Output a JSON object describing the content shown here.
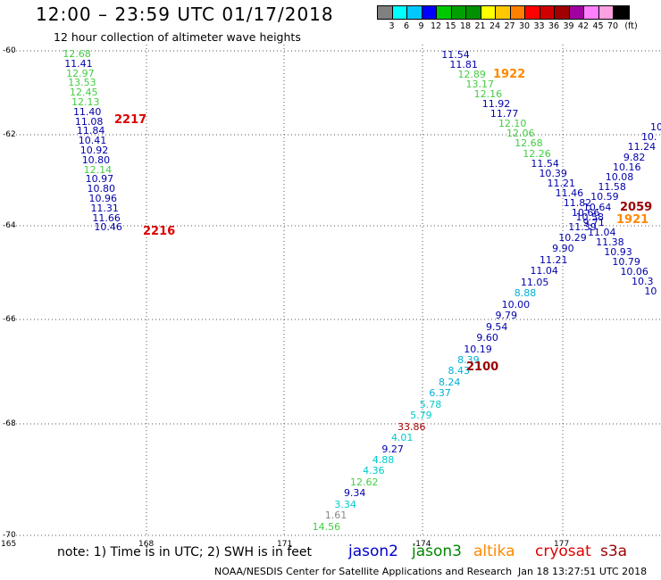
{
  "header": {
    "title": "12:00 – 23:59 UTC 01/17/2018",
    "subtitle": "12 hour collection of altimeter wave heights"
  },
  "legend": {
    "colors": [
      "#808080",
      "#00ffff",
      "#00c8ff",
      "#0000ff",
      "#00c800",
      "#00a000",
      "#009000",
      "#ffff00",
      "#ffc800",
      "#ff8000",
      "#ff0000",
      "#d00000",
      "#a00000",
      "#a000a0",
      "#ff80ff",
      "#ffa0e0",
      "#000000"
    ],
    "labels": [
      "3",
      "6",
      "9",
      "12",
      "15",
      "18",
      "21",
      "24",
      "27",
      "30",
      "33",
      "36",
      "39",
      "42",
      "45",
      "70",
      "(ft)"
    ]
  },
  "axes": {
    "lat_labels": [
      "-60",
      "-62",
      "-64",
      "-66",
      "-68",
      "-70"
    ],
    "lon_labels": [
      "165",
      "168",
      "171",
      "-174",
      "177"
    ]
  },
  "note": "note:  1) Time is in UTC;  2) SWH is in feet",
  "satellites": [
    {
      "name": "jason2",
      "color": "#0000cc"
    },
    {
      "name": "jason3",
      "color": "#008800"
    },
    {
      "name": "altika",
      "color": "#ff8800"
    },
    {
      "name": "cryosat",
      "color": "#dd0000"
    },
    {
      "name": "s3a",
      "color": "#990000"
    }
  ],
  "footer": {
    "credit": "NOAA/NESDIS Center for Satellite Applications and Research",
    "timestamp": "Jan 18 13:27:51 UTC 2018"
  },
  "tracks": [
    {
      "id": "track-2217",
      "points": [
        {
          "v": "12.68",
          "c": "#44cc44"
        },
        {
          "v": "11.41",
          "c": "#0000aa"
        },
        {
          "v": "12.97",
          "c": "#44cc44"
        },
        {
          "v": "13.53",
          "c": "#44cc44"
        },
        {
          "v": "12.45",
          "c": "#44cc44"
        },
        {
          "v": "12.13",
          "c": "#44cc44"
        },
        {
          "v": "11.40",
          "c": "#0000aa"
        },
        {
          "v": "11.08",
          "c": "#0000aa"
        },
        {
          "v": "11.84",
          "c": "#0000aa"
        },
        {
          "v": "10.41",
          "c": "#0000aa"
        },
        {
          "v": "10.92",
          "c": "#0000aa"
        },
        {
          "v": "10.80",
          "c": "#0000aa"
        },
        {
          "v": "12.14",
          "c": "#44cc44"
        },
        {
          "v": "10.97",
          "c": "#0000aa"
        },
        {
          "v": "10.80",
          "c": "#0000aa"
        },
        {
          "v": "10.96",
          "c": "#0000aa"
        },
        {
          "v": "11.31",
          "c": "#0000aa"
        },
        {
          "v": "11.66",
          "c": "#0000aa"
        },
        {
          "v": "10.46",
          "c": "#0000aa"
        }
      ]
    },
    {
      "id": "track-1922",
      "points": [
        {
          "v": "11.54",
          "c": "#0000aa"
        },
        {
          "v": "11.81",
          "c": "#0000aa"
        },
        {
          "v": "12.89",
          "c": "#44cc44"
        },
        {
          "v": "13.17",
          "c": "#44cc44"
        },
        {
          "v": "12.16",
          "c": "#44cc44"
        },
        {
          "v": "11.92",
          "c": "#0000aa"
        },
        {
          "v": "11.77",
          "c": "#0000aa"
        },
        {
          "v": "12.10",
          "c": "#44cc44"
        },
        {
          "v": "12.06",
          "c": "#44cc44"
        },
        {
          "v": "12.68",
          "c": "#44cc44"
        },
        {
          "v": "12.26",
          "c": "#44cc44"
        },
        {
          "v": "11.54",
          "c": "#0000aa"
        },
        {
          "v": "10.39",
          "c": "#0000aa"
        },
        {
          "v": "11.21",
          "c": "#0000aa"
        },
        {
          "v": "11.46",
          "c": "#0000aa"
        },
        {
          "v": "11.82",
          "c": "#0000aa"
        },
        {
          "v": "10.66",
          "c": "#0000aa"
        },
        {
          "v": "9.71",
          "c": "#0000aa"
        },
        {
          "v": "11.04",
          "c": "#0000aa"
        },
        {
          "v": "11.38",
          "c": "#0000aa"
        },
        {
          "v": "10.93",
          "c": "#0000aa"
        },
        {
          "v": "10.79",
          "c": "#0000aa"
        },
        {
          "v": "10.06",
          "c": "#0000aa"
        },
        {
          "v": "10.3",
          "c": "#0000aa"
        },
        {
          "v": "10",
          "c": "#0000aa"
        }
      ]
    },
    {
      "id": "track-2059",
      "points": [
        {
          "v": "10",
          "c": "#0000aa"
        },
        {
          "v": "10.",
          "c": "#0000aa"
        },
        {
          "v": "11.24",
          "c": "#0000aa"
        },
        {
          "v": "9.82",
          "c": "#0000aa"
        },
        {
          "v": "10.16",
          "c": "#0000aa"
        },
        {
          "v": "10.08",
          "c": "#0000aa"
        },
        {
          "v": "11.58",
          "c": "#0000aa"
        },
        {
          "v": "10.59",
          "c": "#0000aa"
        },
        {
          "v": "10.64",
          "c": "#0000aa"
        },
        {
          "v": "10.58",
          "c": "#0000aa"
        },
        {
          "v": "11.39",
          "c": "#0000aa"
        }
      ]
    },
    {
      "id": "track-2100",
      "points": [
        {
          "v": "10.29",
          "c": "#0000aa"
        },
        {
          "v": "9.90",
          "c": "#0000aa"
        },
        {
          "v": "11.21",
          "c": "#0000aa"
        },
        {
          "v": "11.04",
          "c": "#0000aa"
        },
        {
          "v": "11.05",
          "c": "#0000aa"
        },
        {
          "v": "8.88",
          "c": "#00b0d8"
        },
        {
          "v": "10.00",
          "c": "#0000aa"
        },
        {
          "v": "9.79",
          "c": "#0000aa"
        },
        {
          "v": "9.54",
          "c": "#0000aa"
        },
        {
          "v": "9.60",
          "c": "#0000aa"
        },
        {
          "v": "10.19",
          "c": "#0000aa"
        },
        {
          "v": "8.39",
          "c": "#00b0d8"
        },
        {
          "v": "8.43",
          "c": "#00b0d8"
        },
        {
          "v": "8.24",
          "c": "#00b0d8"
        },
        {
          "v": "6.37",
          "c": "#00b0d8"
        },
        {
          "v": "5.78",
          "c": "#00cccc"
        },
        {
          "v": "5.79",
          "c": "#00cccc"
        },
        {
          "v": "33.86",
          "c": "#aa0000"
        },
        {
          "v": "4.01",
          "c": "#00cccc"
        },
        {
          "v": "9.27",
          "c": "#0000aa"
        },
        {
          "v": "4.88",
          "c": "#00cccc"
        },
        {
          "v": "4.36",
          "c": "#00cccc"
        },
        {
          "v": "12.62",
          "c": "#44cc44"
        },
        {
          "v": "9.34",
          "c": "#0000aa"
        },
        {
          "v": "3.34",
          "c": "#00cccc"
        },
        {
          "v": "1.61",
          "c": "#888888"
        },
        {
          "v": "14.56",
          "c": "#44cc44"
        }
      ]
    }
  ],
  "time_labels": [
    {
      "text": "2217",
      "c": "#dd0000"
    },
    {
      "text": "2216",
      "c": "#dd0000"
    },
    {
      "text": "1922",
      "c": "#ff8800"
    },
    {
      "text": "2059",
      "c": "#990000"
    },
    {
      "text": "1921",
      "c": "#ff8800"
    },
    {
      "text": "2100",
      "c": "#990000"
    }
  ]
}
